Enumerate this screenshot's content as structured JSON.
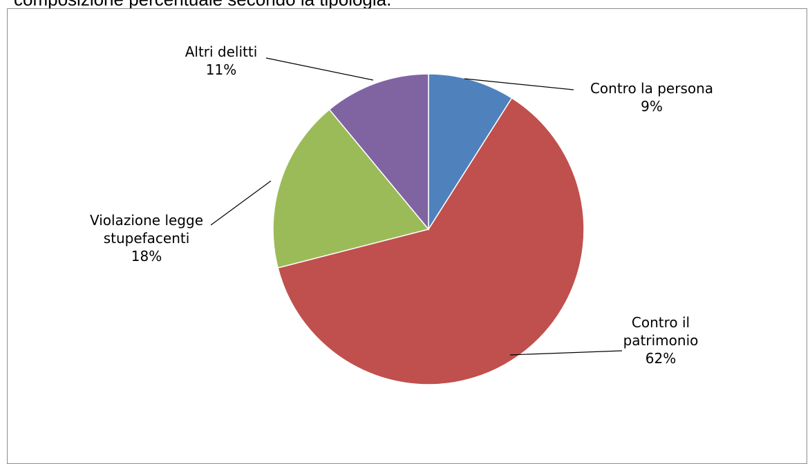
{
  "caption": "composizione percentuale secondo la tipologia.",
  "chart_data": {
    "type": "pie",
    "title": "",
    "slices": [
      {
        "label_lines": [
          "Contro la persona"
        ],
        "value_label": "9%",
        "value": 9,
        "color": "#4F81BD"
      },
      {
        "label_lines": [
          "Contro il",
          "patrimonio"
        ],
        "value_label": "62%",
        "value": 62,
        "color": "#C0504D"
      },
      {
        "label_lines": [
          "Violazione legge",
          "stupefacenti"
        ],
        "value_label": "18%",
        "value": 18,
        "color": "#9BBB59"
      },
      {
        "label_lines": [
          "Altri delitti"
        ],
        "value_label": "11%",
        "value": 11,
        "color": "#8064A2"
      }
    ]
  }
}
